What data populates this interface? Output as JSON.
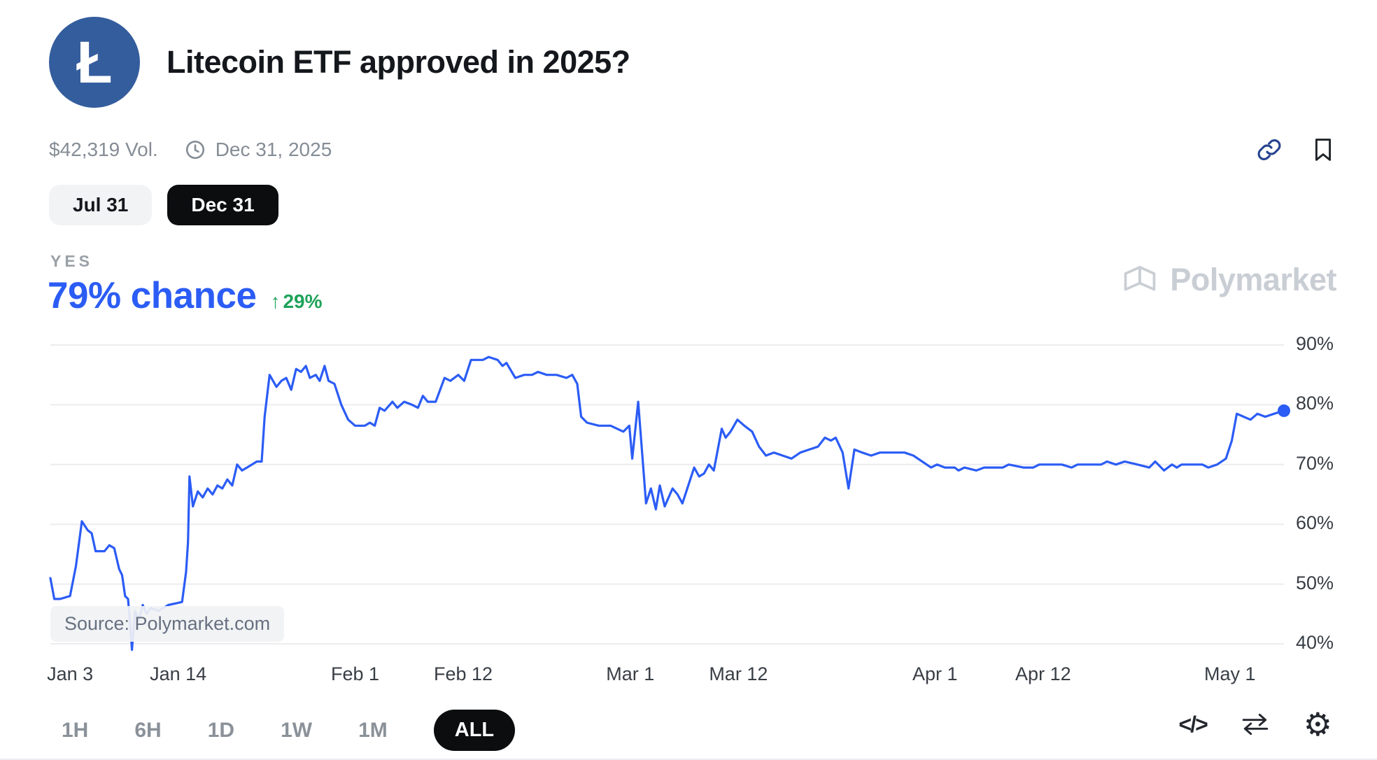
{
  "header": {
    "logo_letter": "Ł",
    "title": "Litecoin ETF approved in 2025?",
    "volume": "$42,319 Vol.",
    "end_date": "Dec 31, 2025"
  },
  "date_tabs": [
    {
      "label": "Jul 31",
      "active": false
    },
    {
      "label": "Dec 31",
      "active": true
    }
  ],
  "outcome": {
    "label": "YES",
    "chance_text": "79% chance",
    "change_arrow": "↑",
    "change_text": "29%"
  },
  "watermark": {
    "brand": "Polymarket",
    "source": "Source: Polymarket.com"
  },
  "timeframes": [
    {
      "label": "1H",
      "active": false
    },
    {
      "label": "6H",
      "active": false
    },
    {
      "label": "1D",
      "active": false
    },
    {
      "label": "1W",
      "active": false
    },
    {
      "label": "1M",
      "active": false
    },
    {
      "label": "ALL",
      "active": true
    }
  ],
  "controls": {
    "embed_code_label": "</>",
    "settings_glyph": "⚙"
  },
  "colors": {
    "accent": "#2b5cf5",
    "positive": "#1ea35a",
    "logo_bg": "#345d9d",
    "watermark_gray": "#c9ced4",
    "grid": "#ececef"
  },
  "chart_data": {
    "type": "line",
    "title": "Litecoin ETF approved in 2025? — YES probability",
    "series_name": "YES",
    "unit": "%",
    "current_value_percent": 79,
    "grid": "horizontal",
    "legend": false,
    "y_ticks_percent": [
      90,
      80,
      70,
      60,
      50,
      40
    ],
    "ylim_percent": [
      37,
      92
    ],
    "x_unit": "days since Jan 1, 2025",
    "x_range_days": [
      0,
      125.5
    ],
    "x_ticks": [
      {
        "label": "Jan 3",
        "day": 2
      },
      {
        "label": "Jan 14",
        "day": 13
      },
      {
        "label": "Feb 1",
        "day": 31
      },
      {
        "label": "Feb 12",
        "day": 42
      },
      {
        "label": "Mar 1",
        "day": 59
      },
      {
        "label": "Mar 12",
        "day": 70
      },
      {
        "label": "Apr 1",
        "day": 90
      },
      {
        "label": "Apr 12",
        "day": 101
      },
      {
        "label": "May 1",
        "day": 120
      }
    ],
    "points": [
      [
        0,
        51
      ],
      [
        0.4,
        47.5
      ],
      [
        1,
        47.5
      ],
      [
        2,
        48
      ],
      [
        2.6,
        53
      ],
      [
        3.2,
        60.5
      ],
      [
        3.8,
        59
      ],
      [
        4.2,
        58.5
      ],
      [
        4.6,
        55.5
      ],
      [
        5.5,
        55.5
      ],
      [
        6,
        56.5
      ],
      [
        6.5,
        56
      ],
      [
        7,
        52.5
      ],
      [
        7.3,
        51.5
      ],
      [
        7.6,
        48
      ],
      [
        7.9,
        47.5
      ],
      [
        8.1,
        43.5
      ],
      [
        8.3,
        39
      ],
      [
        8.6,
        45.5
      ],
      [
        9,
        44
      ],
      [
        9.4,
        46.5
      ],
      [
        9.8,
        45
      ],
      [
        10.2,
        46
      ],
      [
        11,
        45.5
      ],
      [
        12,
        46.5
      ],
      [
        13.4,
        47
      ],
      [
        13.8,
        52
      ],
      [
        14,
        57
      ],
      [
        14.15,
        68
      ],
      [
        14.5,
        63
      ],
      [
        15,
        65.5
      ],
      [
        15.5,
        64.5
      ],
      [
        16,
        66
      ],
      [
        16.5,
        65
      ],
      [
        17,
        66.5
      ],
      [
        17.5,
        66
      ],
      [
        18,
        67.5
      ],
      [
        18.5,
        66.5
      ],
      [
        19,
        70
      ],
      [
        19.5,
        69
      ],
      [
        20,
        69.5
      ],
      [
        21,
        70.5
      ],
      [
        21.5,
        70.5
      ],
      [
        21.8,
        78
      ],
      [
        22.3,
        85
      ],
      [
        23,
        83
      ],
      [
        23.5,
        84
      ],
      [
        24,
        84.5
      ],
      [
        24.5,
        82.5
      ],
      [
        25,
        86
      ],
      [
        25.5,
        85.5
      ],
      [
        26,
        86.5
      ],
      [
        26.4,
        84.5
      ],
      [
        27,
        85
      ],
      [
        27.4,
        84
      ],
      [
        27.9,
        86.5
      ],
      [
        28.3,
        84
      ],
      [
        28.9,
        83.5
      ],
      [
        29.6,
        80
      ],
      [
        30.3,
        77.5
      ],
      [
        31,
        76.5
      ],
      [
        32,
        76.5
      ],
      [
        32.5,
        77
      ],
      [
        33,
        76.5
      ],
      [
        33.5,
        79.5
      ],
      [
        34,
        79
      ],
      [
        34.8,
        80.5
      ],
      [
        35.3,
        79.5
      ],
      [
        36,
        80.5
      ],
      [
        36.8,
        80
      ],
      [
        37.4,
        79.5
      ],
      [
        37.9,
        81.5
      ],
      [
        38.4,
        80.5
      ],
      [
        39.2,
        80.5
      ],
      [
        40.1,
        84.5
      ],
      [
        40.7,
        84
      ],
      [
        41.5,
        85
      ],
      [
        42.1,
        84
      ],
      [
        42.8,
        87.5
      ],
      [
        44,
        87.5
      ],
      [
        44.6,
        88
      ],
      [
        45.5,
        87.5
      ],
      [
        46,
        86.5
      ],
      [
        46.4,
        87
      ],
      [
        47.3,
        84.5
      ],
      [
        48.2,
        85
      ],
      [
        49,
        85
      ],
      [
        49.6,
        85.5
      ],
      [
        50.5,
        85
      ],
      [
        51.5,
        85
      ],
      [
        52.5,
        84.5
      ],
      [
        53.1,
        85
      ],
      [
        53.6,
        83.5
      ],
      [
        54,
        78
      ],
      [
        54.6,
        77
      ],
      [
        55.8,
        76.5
      ],
      [
        57,
        76.5
      ],
      [
        58.3,
        75.5
      ],
      [
        58.9,
        76.5
      ],
      [
        59.2,
        71
      ],
      [
        59.8,
        80.5
      ],
      [
        60.6,
        63.5
      ],
      [
        61.1,
        66
      ],
      [
        61.6,
        62.5
      ],
      [
        62,
        66.5
      ],
      [
        62.5,
        63
      ],
      [
        63.3,
        66
      ],
      [
        63.8,
        65
      ],
      [
        64.3,
        63.5
      ],
      [
        64.7,
        65.5
      ],
      [
        65.5,
        69.5
      ],
      [
        66,
        68
      ],
      [
        66.5,
        68.5
      ],
      [
        67,
        70
      ],
      [
        67.5,
        69
      ],
      [
        68.3,
        76
      ],
      [
        68.7,
        74.5
      ],
      [
        69.2,
        75.5
      ],
      [
        69.9,
        77.5
      ],
      [
        70.6,
        76.5
      ],
      [
        71.4,
        75.5
      ],
      [
        72.1,
        73
      ],
      [
        72.8,
        71.5
      ],
      [
        73.6,
        72
      ],
      [
        74.5,
        71.5
      ],
      [
        75.4,
        71
      ],
      [
        76.3,
        72
      ],
      [
        77.2,
        72.5
      ],
      [
        78.1,
        73
      ],
      [
        78.8,
        74.5
      ],
      [
        79.4,
        74
      ],
      [
        79.9,
        74.5
      ],
      [
        80.6,
        72
      ],
      [
        81.2,
        66
      ],
      [
        81.8,
        72.5
      ],
      [
        82.6,
        72
      ],
      [
        83.5,
        71.5
      ],
      [
        84.4,
        72
      ],
      [
        86.9,
        72
      ],
      [
        87.8,
        71.5
      ],
      [
        89.6,
        69.5
      ],
      [
        90.2,
        70
      ],
      [
        91,
        69.5
      ],
      [
        92,
        69.5
      ],
      [
        92.4,
        69
      ],
      [
        93,
        69.5
      ],
      [
        94.2,
        69
      ],
      [
        95,
        69.5
      ],
      [
        96.9,
        69.5
      ],
      [
        97.5,
        70
      ],
      [
        99,
        69.5
      ],
      [
        100,
        69.5
      ],
      [
        100.6,
        70
      ],
      [
        102.9,
        70
      ],
      [
        103.9,
        69.5
      ],
      [
        104.5,
        70
      ],
      [
        106.9,
        70
      ],
      [
        107.5,
        70.5
      ],
      [
        108.4,
        70
      ],
      [
        109.3,
        70.5
      ],
      [
        110.6,
        70
      ],
      [
        111.8,
        69.5
      ],
      [
        112.4,
        70.5
      ],
      [
        113.3,
        69
      ],
      [
        114.1,
        70
      ],
      [
        114.6,
        69.5
      ],
      [
        115.1,
        70
      ],
      [
        117.2,
        70
      ],
      [
        117.8,
        69.5
      ],
      [
        118.7,
        70
      ],
      [
        119.6,
        71
      ],
      [
        120.2,
        74
      ],
      [
        120.7,
        78.5
      ],
      [
        121.4,
        78
      ],
      [
        122.1,
        77.5
      ],
      [
        122.8,
        78.5
      ],
      [
        123.6,
        78
      ],
      [
        124.5,
        78.5
      ],
      [
        125.5,
        79
      ]
    ]
  }
}
